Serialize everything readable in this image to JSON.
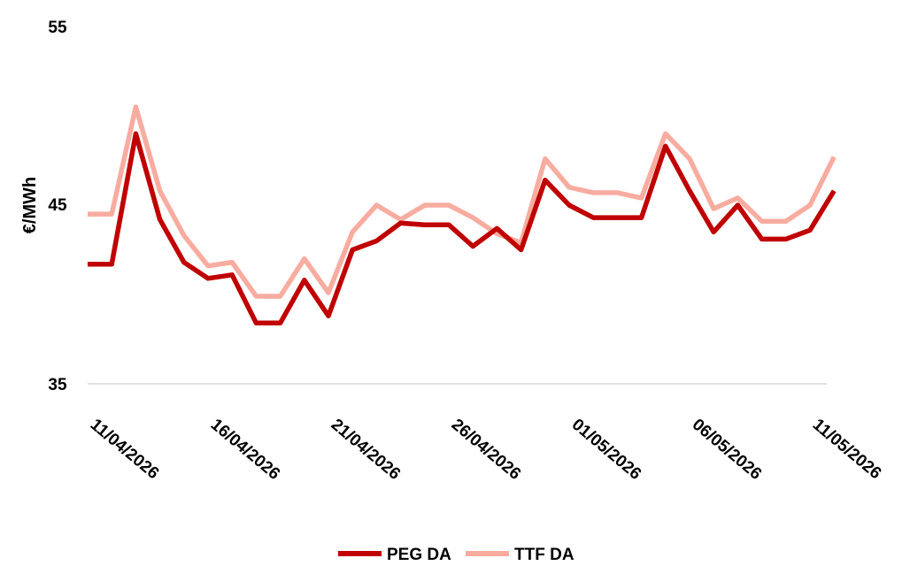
{
  "chart_data": {
    "type": "line",
    "ylabel": "€/MWh",
    "ylim": [
      35,
      55
    ],
    "yticks": [
      "35",
      "45",
      "55"
    ],
    "xlim": [
      "10/04/2026",
      "11/05/2026"
    ],
    "xticks": [
      "11/04/2026",
      "16/04/2026",
      "21/04/2026",
      "26/04/2026",
      "01/05/2026",
      "06/05/2026",
      "11/05/2026"
    ],
    "grid": false,
    "legend": "bottom",
    "x": [
      "10/04/2026",
      "11/04/2026",
      "12/04/2026",
      "13/04/2026",
      "14/04/2026",
      "15/04/2026",
      "16/04/2026",
      "17/04/2026",
      "18/04/2026",
      "19/04/2026",
      "20/04/2026",
      "21/04/2026",
      "22/04/2026",
      "23/04/2026",
      "24/04/2026",
      "25/04/2026",
      "26/04/2026",
      "27/04/2026",
      "28/04/2026",
      "29/04/2026",
      "30/04/2026",
      "01/05/2026",
      "02/05/2026",
      "03/05/2026",
      "04/05/2026",
      "05/05/2026",
      "06/05/2026",
      "07/05/2026",
      "08/05/2026",
      "09/05/2026",
      "10/05/2026",
      "11/05/2026"
    ],
    "series": [
      {
        "name": "PEG DA",
        "color": "#c00000",
        "values": [
          41.7,
          41.7,
          49.0,
          44.2,
          41.8,
          40.9,
          41.1,
          38.4,
          38.4,
          40.8,
          38.8,
          42.5,
          43.0,
          44.0,
          43.9,
          43.9,
          42.7,
          43.7,
          42.5,
          46.4,
          45.0,
          44.3,
          44.3,
          44.3,
          48.3,
          45.8,
          43.5,
          45.0,
          43.1,
          43.1,
          43.6,
          45.8
        ]
      },
      {
        "name": "TTF DA",
        "color": "#f8aca0",
        "values": [
          44.5,
          44.5,
          50.5,
          45.8,
          43.3,
          41.6,
          41.8,
          39.9,
          39.9,
          42.0,
          40.1,
          43.5,
          45.0,
          44.2,
          45.0,
          45.0,
          44.3,
          43.4,
          42.9,
          47.6,
          46.0,
          45.7,
          45.7,
          45.4,
          49.0,
          47.6,
          44.8,
          45.4,
          44.1,
          44.1,
          45.0,
          47.7
        ]
      }
    ]
  }
}
